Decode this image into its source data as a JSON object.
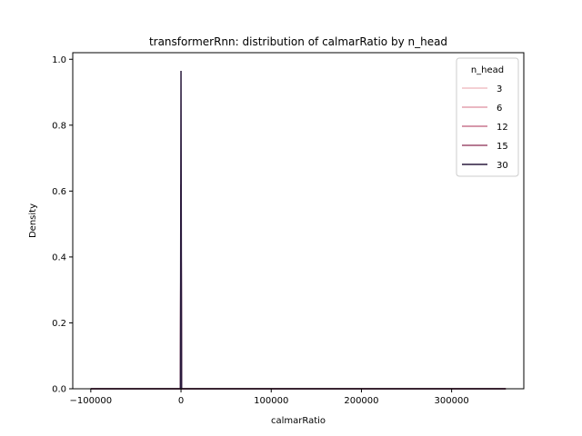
{
  "chart_data": {
    "type": "line",
    "title": "transformerRnn: distribution of calmarRatio by n_head",
    "xlabel": "calmarRatio",
    "ylabel": "Density",
    "xlim": [
      -120000,
      380000
    ],
    "ylim": [
      0,
      1.02
    ],
    "xticks": [
      -100000,
      0,
      100000,
      200000,
      300000
    ],
    "xtick_labels": [
      "−100000",
      "0",
      "100000",
      "200000",
      "300000"
    ],
    "yticks": [
      0.0,
      0.2,
      0.4,
      0.6,
      0.8,
      1.0
    ],
    "ytick_labels": [
      "0.0",
      "0.2",
      "0.4",
      "0.6",
      "0.8",
      "1.0"
    ],
    "grid": false,
    "legend": {
      "title": "n_head",
      "placement": "top-right"
    },
    "series": [
      {
        "name": "3",
        "color": "#f1c1c6",
        "x_range": [
          -100000,
          360000
        ],
        "peak_x": 0,
        "peak_density": 0.35
      },
      {
        "name": "6",
        "color": "#e3a1ad",
        "x_range": [
          -100000,
          360000
        ],
        "peak_x": 0,
        "peak_density": 0.62
      },
      {
        "name": "12",
        "color": "#c8768e",
        "x_range": [
          -100000,
          360000
        ],
        "peak_x": 0,
        "peak_density": 0.62
      },
      {
        "name": "15",
        "color": "#9d4f6f",
        "x_range": [
          -100000,
          360000
        ],
        "peak_x": 0,
        "peak_density": 0.62
      },
      {
        "name": "30",
        "color": "#2a1a3d",
        "x_range": [
          -100000,
          360000
        ],
        "peak_x": 0,
        "peak_density": 0.965
      }
    ]
  }
}
